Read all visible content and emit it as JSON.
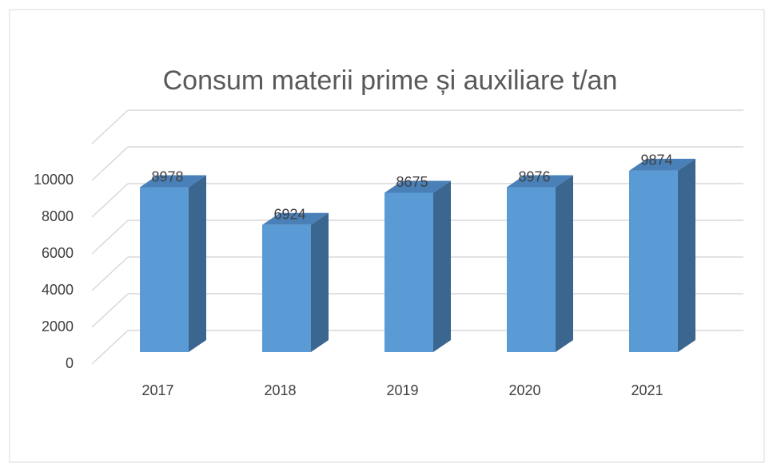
{
  "chart_data": {
    "type": "bar3d",
    "title": "Consum materii prime și auxiliare t/an",
    "categories": [
      "2017",
      "2018",
      "2019",
      "2020",
      "2021"
    ],
    "values": [
      8978,
      6924,
      8675,
      8976,
      9874
    ],
    "color": "#5b9bd5",
    "ylim": [
      0,
      12000
    ],
    "yticks": [
      0,
      2000,
      4000,
      6000,
      8000,
      10000
    ],
    "grid": true
  }
}
